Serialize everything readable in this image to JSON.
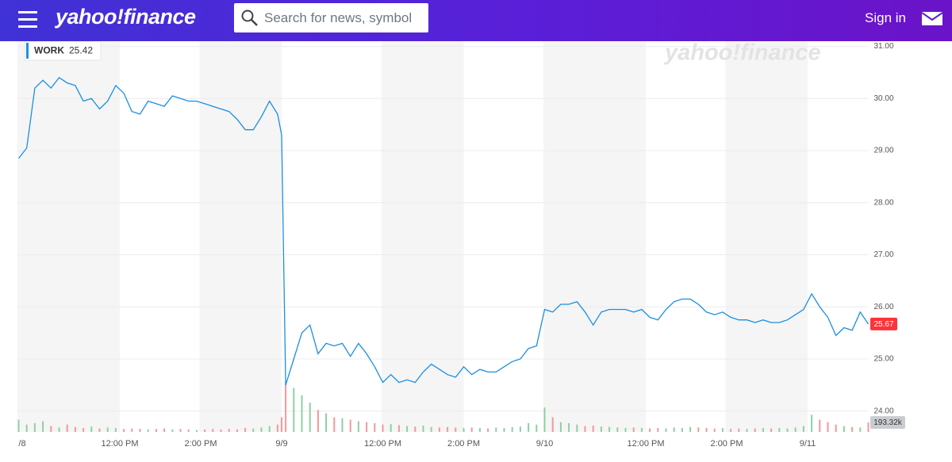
{
  "header": {
    "logo": "yahoo!finance",
    "search_placeholder": "Search for news, symbol",
    "sign_in": "Sign in"
  },
  "chart_data": {
    "type": "line",
    "watermark": "yahoo!finance",
    "legend_value": 25.42,
    "x": [
      0,
      0.2,
      0.4,
      0.6,
      0.8,
      1.0,
      1.2,
      1.4,
      1.6,
      1.8,
      2.0,
      2.2,
      2.4,
      2.6,
      2.8,
      3.0,
      3.2,
      3.4,
      3.6,
      3.8,
      4.0,
      4.2,
      4.4,
      4.6,
      4.8,
      5.0,
      5.2,
      5.4,
      5.6,
      5.8,
      6.0,
      6.2,
      6.4,
      6.5,
      6.6,
      6.8,
      7.0,
      7.2,
      7.4,
      7.6,
      7.8,
      8.0,
      8.2,
      8.4,
      8.6,
      8.8,
      9.0,
      9.2,
      9.4,
      9.6,
      9.8,
      10.0,
      10.2,
      10.4,
      10.6,
      10.8,
      11.0,
      11.2,
      11.4,
      11.6,
      11.8,
      12.0,
      12.2,
      12.4,
      12.6,
      12.8,
      13.0,
      13.2,
      13.4,
      13.6,
      13.8,
      14.0,
      14.2,
      14.4,
      14.6,
      14.8,
      15.0,
      15.2,
      15.4,
      15.6,
      15.8,
      16.0,
      16.2,
      16.4,
      16.6,
      16.8,
      17.0,
      17.2,
      17.4,
      17.6,
      17.8,
      18.0,
      18.2,
      18.4,
      18.6,
      18.8,
      19.0,
      19.2,
      19.4,
      19.6,
      19.8,
      20.0,
      20.2,
      20.4,
      20.6,
      20.8,
      21.0
    ],
    "series": [
      {
        "name": "WORK",
        "color": "#1a8fe3",
        "values": [
          28.85,
          29.05,
          30.2,
          30.35,
          30.2,
          30.4,
          30.3,
          30.25,
          29.95,
          30.0,
          29.8,
          29.95,
          30.25,
          30.1,
          29.75,
          29.7,
          29.95,
          29.9,
          29.85,
          30.05,
          30.0,
          29.95,
          29.95,
          29.9,
          29.85,
          29.8,
          29.75,
          29.6,
          29.4,
          29.4,
          29.65,
          29.95,
          29.7,
          29.3,
          24.5,
          25.0,
          25.5,
          25.65,
          25.1,
          25.3,
          25.25,
          25.3,
          25.05,
          25.3,
          25.1,
          24.85,
          24.55,
          24.7,
          24.55,
          24.6,
          24.55,
          24.75,
          24.9,
          24.8,
          24.7,
          24.65,
          24.85,
          24.7,
          24.8,
          24.75,
          24.75,
          24.85,
          24.95,
          25.0,
          25.2,
          25.25,
          25.95,
          25.9,
          26.05,
          26.05,
          26.1,
          25.9,
          25.65,
          25.9,
          25.95,
          25.95,
          25.95,
          25.9,
          25.95,
          25.8,
          25.75,
          25.95,
          26.1,
          26.15,
          26.15,
          26.05,
          25.9,
          25.85,
          25.9,
          25.8,
          25.75,
          25.75,
          25.7,
          25.75,
          25.7,
          25.7,
          25.75,
          25.85,
          25.95,
          26.25,
          26.0,
          25.8,
          25.45,
          25.6,
          25.55,
          25.9,
          25.67
        ],
        "last_color": "#ff333a"
      },
      {
        "axis": "y2",
        "up_color": "#8fcfa4",
        "down_color": "#f4979b",
        "last_value_label": "193.32k",
        "values": [
          250000,
          150000,
          180000,
          220000,
          120000,
          90000,
          150000,
          100000,
          80000,
          110000,
          70000,
          90000,
          80000,
          60000,
          70000,
          60000,
          50000,
          60000,
          70000,
          50000,
          60000,
          50000,
          40000,
          50000,
          60000,
          50000,
          60000,
          50000,
          80000,
          70000,
          90000,
          120000,
          150000,
          300000,
          1000000,
          900000,
          750000,
          600000,
          450000,
          380000,
          300000,
          280000,
          250000,
          220000,
          200000,
          180000,
          150000,
          160000,
          140000,
          120000,
          110000,
          130000,
          100000,
          90000,
          100000,
          90000,
          80000,
          90000,
          80000,
          70000,
          90000,
          80000,
          100000,
          110000,
          180000,
          150000,
          500000,
          300000,
          200000,
          180000,
          150000,
          120000,
          130000,
          110000,
          100000,
          90000,
          80000,
          90000,
          80000,
          70000,
          80000,
          70000,
          90000,
          80000,
          100000,
          90000,
          80000,
          70000,
          80000,
          60000,
          70000,
          60000,
          70000,
          80000,
          70000,
          80000,
          70000,
          90000,
          120000,
          350000,
          250000,
          200000,
          150000,
          120000,
          100000,
          90000,
          193320
        ]
      }
    ],
    "xlim": [
      0,
      21
    ],
    "xticks": [
      {
        "value": 0,
        "label": "/8"
      },
      {
        "value": 2.5,
        "label": "12:00 PM"
      },
      {
        "value": 4.5,
        "label": "2:00 PM"
      },
      {
        "value": 6.5,
        "label": "9/9"
      },
      {
        "value": 9,
        "label": "12:00 PM"
      },
      {
        "value": 11,
        "label": "2:00 PM"
      },
      {
        "value": 13,
        "label": "9/10"
      },
      {
        "value": 15.5,
        "label": "12:00 PM"
      },
      {
        "value": 17.5,
        "label": "2:00 PM"
      },
      {
        "value": 19.5,
        "label": "9/11"
      }
    ],
    "ylim": [
      23.6,
      31.1
    ],
    "yticks": [
      {
        "value": 24,
        "label": "24.00"
      },
      {
        "value": 25,
        "label": "25.00"
      },
      {
        "value": 26,
        "label": "26.00"
      },
      {
        "value": 27,
        "label": "27.00"
      },
      {
        "value": 28,
        "label": "28.00"
      },
      {
        "value": 29,
        "label": "29.00"
      },
      {
        "value": 30,
        "label": "30.00"
      },
      {
        "value": 31,
        "label": "31.00"
      }
    ],
    "y2lim": [
      0,
      8000000
    ],
    "grid": true
  }
}
